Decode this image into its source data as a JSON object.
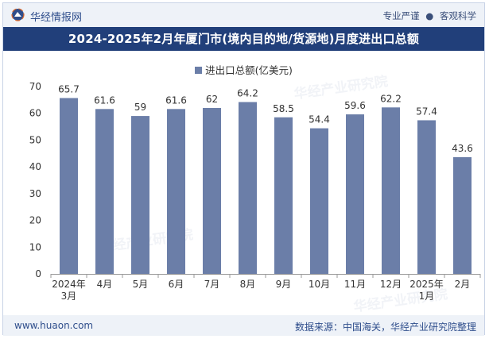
{
  "header": {
    "brand": "华经情报网",
    "slogan_left": "专业严谨",
    "slogan_dot": "●",
    "slogan_right": "客观科学"
  },
  "footer": {
    "site": "www.huaon.com",
    "source": "数据来源：中国海关，华经产业研究院整理"
  },
  "watermarks": [
    "华经产业研究院",
    "华经产业研究院",
    "华经产业研究院"
  ],
  "colors": {
    "bar": "#6b7ea8",
    "title_bg": "#213f7a",
    "topbar_bg": "#eef2f8"
  },
  "chart_data": {
    "type": "bar",
    "title": "2024-2025年2月年厦门市(境内目的地/货源地)月度进出口总额",
    "series": [
      {
        "name": "进出口总额(亿美元)",
        "values": [
          65.7,
          61.6,
          59,
          61.6,
          62,
          64.2,
          58.5,
          54.4,
          59.6,
          62.2,
          57.4,
          43.6
        ],
        "labels": [
          "65.7",
          "61.6",
          "59",
          "61.6",
          "62",
          "64.2",
          "58.5",
          "54.4",
          "59.6",
          "62.2",
          "57.4",
          "43.6"
        ]
      }
    ],
    "categories": [
      [
        "2024年",
        "3月"
      ],
      [
        "4月"
      ],
      [
        "5月"
      ],
      [
        "6月"
      ],
      [
        "7月"
      ],
      [
        "8月"
      ],
      [
        "9月"
      ],
      [
        "10月"
      ],
      [
        "11月"
      ],
      [
        "12月"
      ],
      [
        "2025年",
        "1月"
      ],
      [
        "2月"
      ]
    ],
    "yticks": [
      "0",
      "10",
      "20",
      "30",
      "40",
      "50",
      "60",
      "70"
    ],
    "ylim": [
      0,
      70
    ],
    "xlabel": "",
    "ylabel": "",
    "legend_position": "top-center",
    "grid": false
  }
}
